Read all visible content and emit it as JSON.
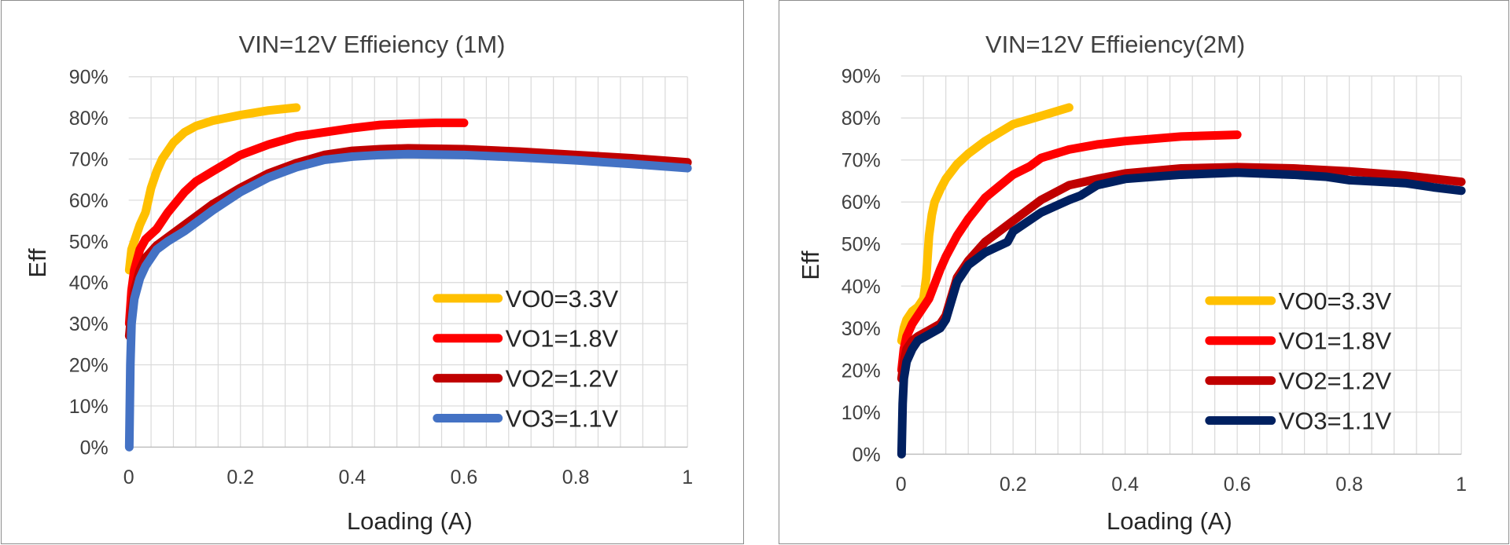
{
  "chart_data": [
    {
      "type": "line",
      "title": "VIN=12V Effieiency (1M)",
      "xlabel": "Loading (A)",
      "ylabel": "Eff",
      "xlim": [
        0,
        1
      ],
      "ylim": [
        0,
        0.9
      ],
      "xticks": [
        0,
        0.2,
        0.4,
        0.6,
        0.8,
        1
      ],
      "xtick_labels": [
        "0",
        "0.2",
        "0.4",
        "0.6",
        "0.8",
        "1"
      ],
      "yticks": [
        0,
        0.1,
        0.2,
        0.3,
        0.4,
        0.5,
        0.6,
        0.7,
        0.8,
        0.9
      ],
      "ytick_labels": [
        "0%",
        "10%",
        "20%",
        "30%",
        "40%",
        "50%",
        "60%",
        "70%",
        "80%",
        "90%"
      ],
      "grid": true,
      "legend_position": "bottom-right",
      "series": [
        {
          "name": "VO0=3.3V",
          "color": "#FFC000",
          "x": [
            0.001,
            0.005,
            0.01,
            0.02,
            0.03,
            0.04,
            0.05,
            0.06,
            0.08,
            0.1,
            0.12,
            0.15,
            0.2,
            0.25,
            0.3
          ],
          "y": [
            0.43,
            0.48,
            0.5,
            0.54,
            0.57,
            0.63,
            0.67,
            0.7,
            0.74,
            0.765,
            0.78,
            0.793,
            0.807,
            0.818,
            0.825
          ]
        },
        {
          "name": "VO1=1.8V",
          "color": "#FF0000",
          "x": [
            0.001,
            0.005,
            0.01,
            0.02,
            0.03,
            0.05,
            0.07,
            0.1,
            0.12,
            0.15,
            0.2,
            0.25,
            0.3,
            0.35,
            0.4,
            0.45,
            0.5,
            0.55,
            0.6
          ],
          "y": [
            0.3,
            0.38,
            0.43,
            0.48,
            0.505,
            0.53,
            0.57,
            0.62,
            0.645,
            0.67,
            0.71,
            0.735,
            0.755,
            0.765,
            0.775,
            0.783,
            0.786,
            0.788,
            0.788
          ]
        },
        {
          "name": "VO2=1.2V",
          "color": "#C00000",
          "x": [
            0.001,
            0.005,
            0.01,
            0.02,
            0.03,
            0.05,
            0.07,
            0.1,
            0.15,
            0.2,
            0.25,
            0.3,
            0.35,
            0.4,
            0.45,
            0.5,
            0.6,
            0.7,
            0.8,
            0.9,
            1.0
          ],
          "y": [
            0.27,
            0.33,
            0.38,
            0.43,
            0.46,
            0.49,
            0.51,
            0.54,
            0.59,
            0.63,
            0.665,
            0.69,
            0.71,
            0.72,
            0.724,
            0.726,
            0.724,
            0.718,
            0.71,
            0.702,
            0.692
          ]
        },
        {
          "name": "VO3=1.1V",
          "color": "#4472C4",
          "x": [
            0.001,
            0.003,
            0.005,
            0.01,
            0.02,
            0.03,
            0.05,
            0.07,
            0.1,
            0.15,
            0.2,
            0.25,
            0.3,
            0.35,
            0.4,
            0.45,
            0.5,
            0.6,
            0.7,
            0.8,
            0.9,
            1.0
          ],
          "y": [
            0.0,
            0.2,
            0.3,
            0.36,
            0.41,
            0.44,
            0.48,
            0.5,
            0.525,
            0.575,
            0.62,
            0.655,
            0.68,
            0.698,
            0.706,
            0.71,
            0.712,
            0.71,
            0.704,
            0.697,
            0.688,
            0.678
          ]
        }
      ]
    },
    {
      "type": "line",
      "title": "VIN=12V Effieiency(2M)",
      "xlabel": "Loading (A)",
      "ylabel": "Eff",
      "xlim": [
        0,
        1
      ],
      "ylim": [
        0,
        0.9
      ],
      "xticks": [
        0,
        0.2,
        0.4,
        0.6,
        0.8,
        1
      ],
      "xtick_labels": [
        "0",
        "0.2",
        "0.4",
        "0.6",
        "0.8",
        "1"
      ],
      "yticks": [
        0,
        0.1,
        0.2,
        0.3,
        0.4,
        0.5,
        0.6,
        0.7,
        0.8,
        0.9
      ],
      "ytick_labels": [
        "0%",
        "10%",
        "20%",
        "30%",
        "40%",
        "50%",
        "60%",
        "70%",
        "80%",
        "90%"
      ],
      "grid": true,
      "legend_position": "bottom-right",
      "series": [
        {
          "name": "VO0=3.3V",
          "color": "#FFC000",
          "x": [
            0.001,
            0.005,
            0.01,
            0.02,
            0.03,
            0.04,
            0.045,
            0.05,
            0.055,
            0.06,
            0.07,
            0.08,
            0.1,
            0.12,
            0.15,
            0.2,
            0.25,
            0.3
          ],
          "y": [
            0.27,
            0.3,
            0.32,
            0.34,
            0.35,
            0.37,
            0.42,
            0.52,
            0.57,
            0.6,
            0.63,
            0.655,
            0.69,
            0.715,
            0.745,
            0.785,
            0.805,
            0.825
          ]
        },
        {
          "name": "VO1=1.8V",
          "color": "#FF0000",
          "x": [
            0.001,
            0.005,
            0.01,
            0.02,
            0.03,
            0.05,
            0.07,
            0.08,
            0.1,
            0.12,
            0.15,
            0.2,
            0.23,
            0.25,
            0.3,
            0.35,
            0.4,
            0.5,
            0.6
          ],
          "y": [
            0.2,
            0.25,
            0.28,
            0.31,
            0.33,
            0.37,
            0.44,
            0.47,
            0.52,
            0.56,
            0.61,
            0.665,
            0.685,
            0.705,
            0.725,
            0.737,
            0.745,
            0.756,
            0.76
          ]
        },
        {
          "name": "VO2=1.2V",
          "color": "#C00000",
          "x": [
            0.001,
            0.005,
            0.01,
            0.02,
            0.03,
            0.05,
            0.07,
            0.08,
            0.1,
            0.12,
            0.15,
            0.2,
            0.25,
            0.3,
            0.35,
            0.4,
            0.5,
            0.6,
            0.7,
            0.8,
            0.9,
            1.0
          ],
          "y": [
            0.18,
            0.22,
            0.25,
            0.27,
            0.28,
            0.295,
            0.31,
            0.33,
            0.42,
            0.46,
            0.505,
            0.555,
            0.605,
            0.64,
            0.655,
            0.668,
            0.68,
            0.683,
            0.68,
            0.673,
            0.663,
            0.648
          ]
        },
        {
          "name": "VO3=1.1V",
          "color": "#002060",
          "x": [
            0.001,
            0.003,
            0.005,
            0.01,
            0.02,
            0.03,
            0.05,
            0.07,
            0.08,
            0.1,
            0.12,
            0.15,
            0.19,
            0.2,
            0.25,
            0.3,
            0.32,
            0.35,
            0.4,
            0.5,
            0.6,
            0.7,
            0.76,
            0.8,
            0.9,
            0.95,
            1.0
          ],
          "y": [
            0.0,
            0.12,
            0.18,
            0.22,
            0.25,
            0.27,
            0.285,
            0.3,
            0.32,
            0.41,
            0.45,
            0.48,
            0.505,
            0.53,
            0.575,
            0.605,
            0.615,
            0.64,
            0.655,
            0.665,
            0.67,
            0.665,
            0.66,
            0.652,
            0.645,
            0.635,
            0.627
          ]
        }
      ]
    }
  ]
}
